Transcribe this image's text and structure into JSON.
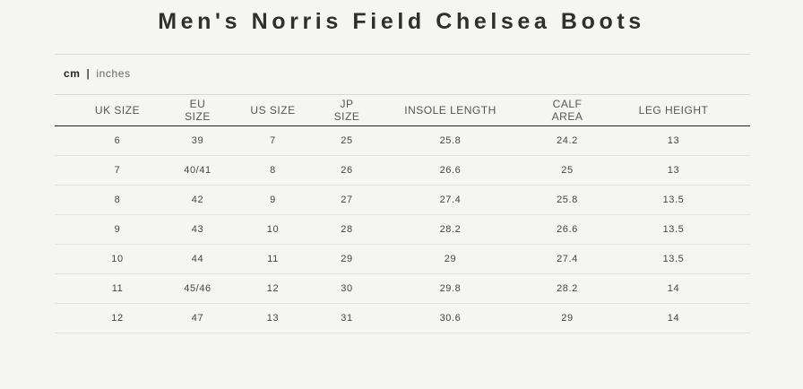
{
  "title": "Men's Norris Field Chelsea Boots",
  "units": {
    "active": "cm",
    "separator": "|",
    "inactive": "inches"
  },
  "table": {
    "headers": [
      "UK SIZE",
      "EU SIZE",
      "US SIZE",
      "JP SIZE",
      "INSOLE LENGTH",
      "CALF AREA",
      "LEG HEIGHT"
    ],
    "rows": [
      [
        "6",
        "39",
        "7",
        "25",
        "25.8",
        "24.2",
        "13"
      ],
      [
        "7",
        "40/41",
        "8",
        "26",
        "26.6",
        "25",
        "13"
      ],
      [
        "8",
        "42",
        "9",
        "27",
        "27.4",
        "25.8",
        "13.5"
      ],
      [
        "9",
        "43",
        "10",
        "28",
        "28.2",
        "26.6",
        "13.5"
      ],
      [
        "10",
        "44",
        "11",
        "29",
        "29",
        "27.4",
        "13.5"
      ],
      [
        "11",
        "45/46",
        "12",
        "30",
        "29.8",
        "28.2",
        "14"
      ],
      [
        "12",
        "47",
        "13",
        "31",
        "30.6",
        "29",
        "14"
      ]
    ]
  }
}
